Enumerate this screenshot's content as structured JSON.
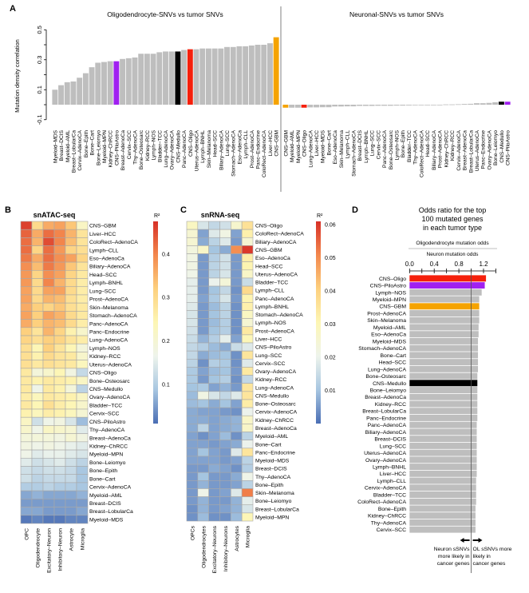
{
  "colors": {
    "default_bar": "#bebebe",
    "CNS-PiloAstro": "#a020f0",
    "CNS-Medullo": "#000000",
    "CNS-Oligo": "#f5200c",
    "CNS-GBM": "#f5a300",
    "divider": "#808080"
  },
  "heatmap_colormap": [
    "#4a6eb4",
    "#a7c6e1",
    "#eef4ec",
    "#fdf6b4",
    "#fdd07e",
    "#f3884d",
    "#d73027"
  ],
  "chart_data": [
    {
      "panel": "A",
      "type": "bar",
      "title": "Oligodendrocyte-SNVs vs tumor SNVs",
      "ylabel": "Mutation density correlation",
      "ylim": [
        -0.1,
        0.5
      ],
      "yticks": [
        "-0.1",
        "0.1",
        "0.3",
        "0.5"
      ],
      "categories": [
        "Myeloid–MDS",
        "Breast–DCIS",
        "Myeloid–AML",
        "Breast–LobularCa",
        "Cervix–AdenoCA",
        "Bone–Epith",
        "Bone–Cart",
        "Bone–Leiomyo",
        "Myeloid–MPN",
        "Kidney–ChRCC",
        "CNS–PiloAstro",
        "Breast–AdenoCa",
        "Cervix–SCC",
        "Thy–AdenoCA",
        "Bone–Osteosarc",
        "Kidney–RCC",
        "Lymph–NOS",
        "Bladder–TCC",
        "Lung–AdenoCA",
        "Ovary–AdenoCA",
        "CNS–Medullo",
        "Panc–AdenoCA",
        "CNS–Oligo",
        "Uterus–AdenoCA",
        "Lymph–BNHL",
        "Skin–Melanoma",
        "Head–SCC",
        "Biliary–AdenoCA",
        "Lung–SCC",
        "Stomach–AdenoCA",
        "Eso–AdenoCa",
        "Lymph–CLL",
        "Prost–AdenoCA",
        "Panc–Endocrine",
        "ColoRect–AdenoCA",
        "Liver–HCC",
        "CNS–GBM"
      ],
      "values": [
        0.1,
        0.13,
        0.15,
        0.155,
        0.18,
        0.21,
        0.25,
        0.28,
        0.285,
        0.29,
        0.29,
        0.305,
        0.31,
        0.315,
        0.34,
        0.34,
        0.34,
        0.35,
        0.355,
        0.355,
        0.355,
        0.365,
        0.37,
        0.37,
        0.375,
        0.375,
        0.375,
        0.375,
        0.385,
        0.385,
        0.39,
        0.39,
        0.395,
        0.4,
        0.4,
        0.41,
        0.45
      ]
    },
    {
      "panel": "A",
      "type": "bar",
      "title": "Neuronal-SNVs vs tumor SNVs",
      "ylim": [
        -0.1,
        0.5
      ],
      "categories": [
        "CNS–GBM",
        "Myeloid–AML",
        "Myeloid–MPN",
        "CNS–Oligo",
        "Lung–AdenoCA",
        "Liver–HCC",
        "Myeloid–MDS",
        "Bone–Cart",
        "Eso–AdenoCa",
        "Skin–Melanoma",
        "Lymph–CLL",
        "Stomach–AdenoCA",
        "Breast–DCIS",
        "Lymph–BNHL",
        "Lung–SCC",
        "Cervix–SCC",
        "Panc–AdenoCA",
        "Bone–Osteosarc",
        "Lymph–NOS",
        "Bone–Epith",
        "Bladder–TCC",
        "Thy–AdenoCA",
        "ColoRect–AdenoCA",
        "Head–SCC",
        "Biliary–AdenoCA",
        "Prost–AdenoCA",
        "Kidney–ChRCC",
        "Kidney–RCC",
        "Cervix–AdenoCA",
        "Breast–AdenoCa",
        "Breast–LobularCa",
        "Uterus–AdenoCA",
        "Panc–Endocrine",
        "Ovary–AdenoCA",
        "Bone–Leiomyo",
        "CNS–Medullo",
        "CNS–PiloAstro"
      ],
      "values": [
        -0.02,
        -0.02,
        -0.02,
        -0.02,
        -0.018,
        -0.018,
        -0.017,
        -0.017,
        -0.012,
        -0.012,
        -0.011,
        -0.011,
        -0.008,
        -0.008,
        -0.008,
        -0.007,
        -0.007,
        -0.007,
        -0.006,
        -0.006,
        -0.005,
        -0.004,
        -0.004,
        -0.004,
        -0.004,
        -0.003,
        0.002,
        0.002,
        0.003,
        0.005,
        0.006,
        0.01,
        0.01,
        0.012,
        0.016,
        0.02,
        0.02
      ]
    },
    {
      "panel": "B",
      "type": "heatmap",
      "title": "snATAC-seq",
      "legend_title": "R²",
      "range": [
        0.01,
        0.475
      ],
      "colorbar_ticks": [
        "0.4",
        "0.3",
        "0.2",
        "0.1"
      ],
      "columns": [
        "OPC",
        "Oligodendrocyte",
        "Excitatory–Neuron",
        "Inhibitory–Neuron",
        "Astrocyte",
        "Microglia"
      ],
      "rows": [
        "CNS–GBM",
        "Liver–HCC",
        "ColoRect–AdenoCA",
        "Lymph–CLL",
        "Eso–AdenoCa",
        "Biliary–AdenoCA",
        "Head–SCC",
        "Lymph–BNHL",
        "Lung–SCC",
        "Prost–AdenoCA",
        "Skin–Melanoma",
        "Stomach–AdenoCA",
        "Panc–AdenoCA",
        "Panc–Endocrine",
        "Lung–AdenoCA",
        "Lymph–NOS",
        "Kidney–RCC",
        "Uterus–AdenoCA",
        "CNS–Oligo",
        "Bone–Osteosarc",
        "CNS–Medullo",
        "Ovary–AdenoCA",
        "Bladder–TCC",
        "Cervix–SCC",
        "CNS–PiloAstro",
        "Thy–AdenoCA",
        "Breast–AdenoCa",
        "Kidney–ChRCC",
        "Myeloid–MPN",
        "Bone–Leiomyo",
        "Bone–Epith",
        "Bone–Cart",
        "Cervix–AdenoCA",
        "Myeloid–AML",
        "Breast–DCIS",
        "Breast–LobularCa",
        "Myeloid–MDS"
      ],
      "values": [
        [
          0.46,
          0.3,
          0.36,
          0.37,
          0.33,
          0.22
        ],
        [
          0.43,
          0.36,
          0.42,
          0.4,
          0.35,
          0.28
        ],
        [
          0.42,
          0.35,
          0.45,
          0.4,
          0.34,
          0.28
        ],
        [
          0.42,
          0.31,
          0.42,
          0.38,
          0.31,
          0.29
        ],
        [
          0.41,
          0.36,
          0.42,
          0.39,
          0.37,
          0.31
        ],
        [
          0.39,
          0.34,
          0.41,
          0.38,
          0.33,
          0.28
        ],
        [
          0.38,
          0.31,
          0.39,
          0.37,
          0.31,
          0.27
        ],
        [
          0.38,
          0.3,
          0.4,
          0.35,
          0.3,
          0.26
        ],
        [
          0.37,
          0.3,
          0.37,
          0.37,
          0.3,
          0.26
        ],
        [
          0.37,
          0.3,
          0.35,
          0.34,
          0.29,
          0.26
        ],
        [
          0.36,
          0.32,
          0.31,
          0.33,
          0.29,
          0.27
        ],
        [
          0.37,
          0.32,
          0.37,
          0.35,
          0.3,
          0.27
        ],
        [
          0.36,
          0.32,
          0.35,
          0.34,
          0.3,
          0.26
        ],
        [
          0.32,
          0.28,
          0.35,
          0.31,
          0.25,
          0.21
        ],
        [
          0.31,
          0.29,
          0.32,
          0.31,
          0.28,
          0.26
        ],
        [
          0.29,
          0.24,
          0.32,
          0.28,
          0.24,
          0.19
        ],
        [
          0.29,
          0.25,
          0.3,
          0.28,
          0.27,
          0.21
        ],
        [
          0.29,
          0.27,
          0.29,
          0.28,
          0.27,
          0.23
        ],
        [
          0.27,
          0.19,
          0.21,
          0.24,
          0.18,
          0.12
        ],
        [
          0.27,
          0.25,
          0.27,
          0.26,
          0.25,
          0.22
        ],
        [
          0.27,
          0.17,
          0.27,
          0.25,
          0.19,
          0.11
        ],
        [
          0.26,
          0.23,
          0.27,
          0.26,
          0.25,
          0.22
        ],
        [
          0.27,
          0.24,
          0.29,
          0.26,
          0.24,
          0.21
        ],
        [
          0.25,
          0.23,
          0.26,
          0.25,
          0.23,
          0.2
        ],
        [
          0.22,
          0.13,
          0.17,
          0.18,
          0.14,
          0.08
        ],
        [
          0.21,
          0.17,
          0.22,
          0.21,
          0.2,
          0.15
        ],
        [
          0.19,
          0.19,
          0.19,
          0.18,
          0.2,
          0.18
        ],
        [
          0.18,
          0.17,
          0.18,
          0.17,
          0.16,
          0.15
        ],
        [
          0.17,
          0.15,
          0.16,
          0.16,
          0.15,
          0.14
        ],
        [
          0.15,
          0.13,
          0.14,
          0.15,
          0.13,
          0.11
        ],
        [
          0.13,
          0.12,
          0.13,
          0.13,
          0.12,
          0.09
        ],
        [
          0.13,
          0.11,
          0.12,
          0.12,
          0.12,
          0.09
        ],
        [
          0.1,
          0.1,
          0.11,
          0.1,
          0.1,
          0.09
        ],
        [
          0.06,
          0.07,
          0.06,
          0.06,
          0.06,
          0.07
        ],
        [
          0.05,
          0.05,
          0.05,
          0.05,
          0.05,
          0.05
        ],
        [
          0.06,
          0.06,
          0.05,
          0.05,
          0.05,
          0.06
        ],
        [
          0.02,
          0.03,
          0.02,
          0.02,
          0.03,
          0.03
        ]
      ]
    },
    {
      "panel": "C",
      "type": "heatmap",
      "title": "snRNA-seq",
      "legend_title": "R²",
      "range": [
        0,
        0.061
      ],
      "colorbar_ticks": [
        "0.06",
        "0.05",
        "0.04",
        "0.03",
        "0.02",
        "0.01"
      ],
      "columns": [
        "OPCs",
        "Oligodendrocytes",
        "Excitatory–Neurons",
        "Inhibitory–Neurons",
        "Astrocytes",
        "Microglia"
      ],
      "rows": [
        "CNS–Oligo",
        "ColoRect–AdenoCA",
        "Biliary–AdenoCA",
        "CNS–GBM",
        "Eso–AdenoCa",
        "Head–SCC",
        "Uterus–AdenoCA",
        "Bladder–TCC",
        "Lymph–CLL",
        "Panc–AdenoCA",
        "Lymph–BNHL",
        "Stomach–AdenoCA",
        "Lymph–NOS",
        "Prost–AdenoCA",
        "Liver–HCC",
        "CNS–PiloAstro",
        "Lung–SCC",
        "Cervix–SCC",
        "Ovary–AdenoCA",
        "Kidney–RCC",
        "Lung–AdenoCA",
        "CNS–Medullo",
        "Bone–Osteosarc",
        "Cervix–AdenoCA",
        "Kidney–ChRCC",
        "Breast–AdenoCa",
        "Myeloid–AML",
        "Bone–Cart",
        "Panc–Endocrine",
        "Myeloid–MDS",
        "Breast–DCIS",
        "Thy–AdenoCA",
        "Bone–Epith",
        "Skin–Melanoma",
        "Bone–Leiomyo",
        "Breast–LobularCa",
        "Myeloid–MPN"
      ],
      "values": [
        [
          0.028,
          0.017,
          0.014,
          0.016,
          0.026,
          0.036
        ],
        [
          0.025,
          0.006,
          0.018,
          0.022,
          0.006,
          0.032
        ],
        [
          0.025,
          0.007,
          0.013,
          0.018,
          0.005,
          0.025
        ],
        [
          0.023,
          0.027,
          0.01,
          0.007,
          0.05,
          0.06
        ],
        [
          0.022,
          0.005,
          0.012,
          0.016,
          0.005,
          0.033
        ],
        [
          0.022,
          0.005,
          0.013,
          0.016,
          0.005,
          0.031
        ],
        [
          0.021,
          0.005,
          0.013,
          0.017,
          0.005,
          0.027
        ],
        [
          0.019,
          0.005,
          0.02,
          0.024,
          0.005,
          0.015
        ],
        [
          0.019,
          0.005,
          0.01,
          0.014,
          0.004,
          0.038
        ],
        [
          0.019,
          0.006,
          0.011,
          0.017,
          0.005,
          0.031
        ],
        [
          0.018,
          0.005,
          0.009,
          0.013,
          0.004,
          0.032
        ],
        [
          0.017,
          0.005,
          0.01,
          0.013,
          0.004,
          0.028
        ],
        [
          0.017,
          0.005,
          0.009,
          0.012,
          0.004,
          0.025
        ],
        [
          0.016,
          0.005,
          0.01,
          0.012,
          0.004,
          0.034
        ],
        [
          0.015,
          0.008,
          0.012,
          0.019,
          0.006,
          0.03
        ],
        [
          0.014,
          0.012,
          0.009,
          0.007,
          0.015,
          0.018
        ],
        [
          0.014,
          0.007,
          0.009,
          0.01,
          0.004,
          0.035
        ],
        [
          0.013,
          0.004,
          0.012,
          0.011,
          0.004,
          0.018
        ],
        [
          0.011,
          0.006,
          0.009,
          0.01,
          0.005,
          0.034
        ],
        [
          0.011,
          0.005,
          0.01,
          0.012,
          0.004,
          0.014
        ],
        [
          0.01,
          0.011,
          0.006,
          0.008,
          0.005,
          0.035
        ],
        [
          0.009,
          0.022,
          0.017,
          0.014,
          0.018,
          0.035
        ],
        [
          0.009,
          0.01,
          0.007,
          0.01,
          0.006,
          0.033
        ],
        [
          0.007,
          0.006,
          0.006,
          0.005,
          0.004,
          0.02
        ],
        [
          0.007,
          0.007,
          0.006,
          0.007,
          0.008,
          0.027
        ],
        [
          0.007,
          0.013,
          0.006,
          0.007,
          0.008,
          0.027
        ],
        [
          0.006,
          0.004,
          0.006,
          0.009,
          0.004,
          0.013
        ],
        [
          0.006,
          0.006,
          0.005,
          0.006,
          0.007,
          0.02
        ],
        [
          0.006,
          0.01,
          0.006,
          0.005,
          0.018,
          0.035
        ],
        [
          0.006,
          0.006,
          0.006,
          0.005,
          0.006,
          0.013
        ],
        [
          0.005,
          0.005,
          0.007,
          0.006,
          0.004,
          0.012
        ],
        [
          0.005,
          0.01,
          0.005,
          0.005,
          0.007,
          0.021
        ],
        [
          0.005,
          0.008,
          0.005,
          0.005,
          0.006,
          0.013
        ],
        [
          0.005,
          0.021,
          0.005,
          0.006,
          0.018,
          0.052
        ],
        [
          0.005,
          0.008,
          0.005,
          0.005,
          0.008,
          0.019
        ],
        [
          0.004,
          0.008,
          0.005,
          0.006,
          0.008,
          0.017
        ],
        [
          0.004,
          0.009,
          0.004,
          0.004,
          0.009,
          0.03
        ]
      ]
    },
    {
      "panel": "D",
      "type": "bar",
      "orientation": "horizontal",
      "title": [
        "Odds ratio for the top",
        "100 mutated genes",
        "in each tumor type"
      ],
      "xlabel_numerator": "Oligodendrocyte mutation odds",
      "xlabel_denominator": "Neuron mutation odds",
      "xlim": [
        0,
        1.4
      ],
      "xticks": [
        "0.0",
        "0.4",
        "0.8",
        "1.2"
      ],
      "reference_line": 1.0,
      "categories": [
        "CNS–Oligo",
        "CNS–PiloAstro",
        "Lymph–NOS",
        "Myeloid–MPN",
        "CNS–GBM",
        "Prost–AdenoCA",
        "Skin–Melanoma",
        "Myeloid–AML",
        "Eso–AdenoCa",
        "Myeloid–MDS",
        "Stomach–AdenoCA",
        "Bone–Cart",
        "Head–SCC",
        "Lung–AdenoCA",
        "Bone–Osteosarc",
        "CNS–Medullo",
        "Bone–Leiomyo",
        "Breast–AdenoCa",
        "Kidney–RCC",
        "Breast–LobularCa",
        "Panc–Endocrine",
        "Panc–AdenoCA",
        "Biliary–AdenoCA",
        "Breast–DCIS",
        "Lung–SCC",
        "Uterus–AdenoCA",
        "Ovary–AdenoCA",
        "Lymph–BNHL",
        "Liver–HCC",
        "Lymph–CLL",
        "Cervix–AdenoCA",
        "Bladder–TCC",
        "ColoRect–AdenoCA",
        "Bone–Epith",
        "Kidney–ChRCC",
        "Thy–AdenoCA",
        "Cervix–SCC"
      ],
      "values": [
        1.24,
        1.22,
        1.17,
        1.13,
        1.13,
        1.13,
        1.13,
        1.12,
        1.12,
        1.11,
        1.11,
        1.11,
        1.11,
        1.11,
        1.1,
        1.1,
        1.1,
        1.1,
        1.1,
        1.1,
        1.1,
        1.09,
        1.09,
        1.09,
        1.09,
        1.09,
        1.09,
        1.09,
        1.09,
        1.08,
        1.08,
        1.08,
        1.08,
        1.07,
        1.07,
        1.07,
        1.07
      ],
      "annotation_left": [
        "Neuron sSNVs",
        "more likely in",
        "cancer genes"
      ],
      "annotation_right": [
        "OL sSNVs more",
        "likely in",
        "cancer genes"
      ]
    }
  ],
  "panel_labels": [
    "A",
    "B",
    "C",
    "D"
  ]
}
